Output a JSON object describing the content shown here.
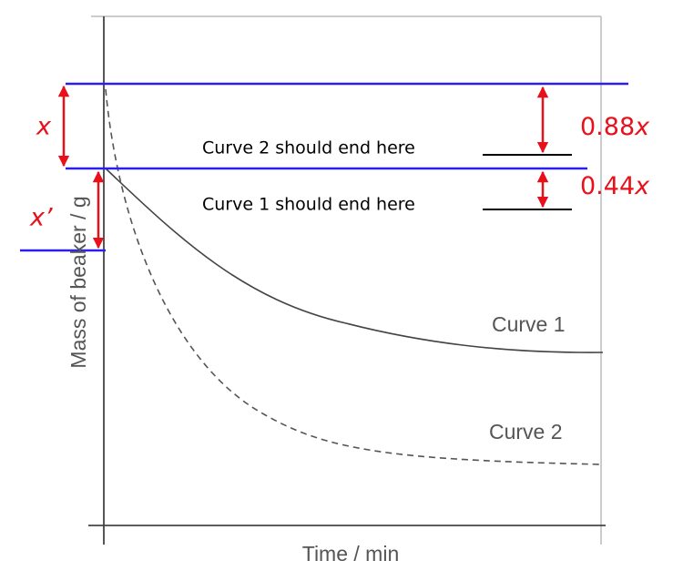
{
  "axes": {
    "y_label": "Mass of beaker / g",
    "x_label": "Time / min"
  },
  "curves": [
    {
      "label": "Curve 1"
    },
    {
      "label": "Curve 2"
    }
  ],
  "notes": [
    {
      "text": "Curve 2 should end here"
    },
    {
      "text": "Curve 1 should end here"
    }
  ],
  "annotations": {
    "gap_left_upper": {
      "variable": "x"
    },
    "gap_left_lower": {
      "variable": "x’"
    },
    "gap_right_upper": {
      "coefficient": "0.88",
      "variable": "x"
    },
    "gap_right_lower": {
      "coefficient": "0.44",
      "variable": "x"
    }
  }
}
